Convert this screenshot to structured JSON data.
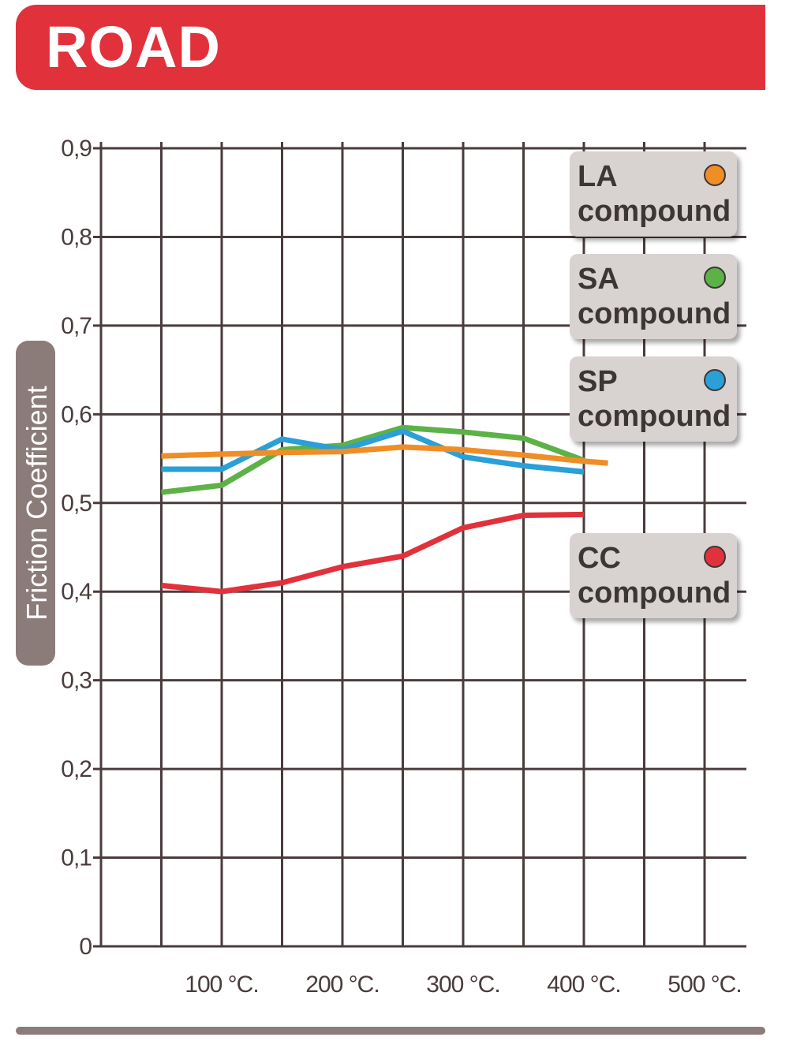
{
  "header": {
    "title": "ROAD",
    "color": "#e1323c"
  },
  "chart_data": {
    "type": "line",
    "title": "ROAD",
    "xlabel": "",
    "ylabel": "Friction Coefficient",
    "xlim": [
      0,
      540
    ],
    "ylim": [
      0,
      0.9
    ],
    "x_ticks": [
      100,
      200,
      300,
      400,
      500
    ],
    "x_tick_labels": [
      "100 °C.",
      "200 °C.",
      "300 °C.",
      "400 °C.",
      "500 °C."
    ],
    "y_ticks": [
      0,
      0.1,
      0.2,
      0.3,
      0.4,
      0.5,
      0.6,
      0.7,
      0.8,
      0.9
    ],
    "y_tick_labels": [
      "0",
      "0,1",
      "0,2",
      "0,3",
      "0,4",
      "0,5",
      "0,6",
      "0,7",
      "0,8",
      "0,9"
    ],
    "grid": true,
    "series": [
      {
        "name": "CC compound",
        "code": "CC",
        "label": "compound",
        "color": "#e1323c",
        "x": [
          50,
          100,
          150,
          200,
          250,
          300,
          350,
          400
        ],
        "y": [
          0.407,
          0.4,
          0.41,
          0.428,
          0.44,
          0.472,
          0.486,
          0.487
        ]
      },
      {
        "name": "SA compound",
        "code": "SA",
        "label": "compound",
        "color": "#5cb247",
        "x": [
          50,
          100,
          150,
          200,
          250,
          300,
          350,
          400
        ],
        "y": [
          0.512,
          0.52,
          0.56,
          0.565,
          0.585,
          0.58,
          0.573,
          0.548
        ]
      },
      {
        "name": "SP compound",
        "code": "SP",
        "label": "compound",
        "color": "#2a9fd8",
        "x": [
          50,
          100,
          150,
          200,
          250,
          300,
          350,
          400
        ],
        "y": [
          0.538,
          0.538,
          0.572,
          0.56,
          0.581,
          0.552,
          0.542,
          0.535
        ]
      },
      {
        "name": "LA compound",
        "code": "LA",
        "label": "compound",
        "color": "#ef8d26",
        "x": [
          50,
          100,
          150,
          200,
          250,
          300,
          350,
          400,
          420
        ],
        "y": [
          0.553,
          0.555,
          0.557,
          0.558,
          0.563,
          0.56,
          0.554,
          0.547,
          0.545
        ]
      }
    ],
    "legend": [
      {
        "code": "LA",
        "label": "compound",
        "color": "#ef8d26"
      },
      {
        "code": "SA",
        "label": "compound",
        "color": "#5cb247"
      },
      {
        "code": "SP",
        "label": "compound",
        "color": "#2a9fd8"
      },
      {
        "code": "CC",
        "label": "compound",
        "color": "#e1323c"
      }
    ]
  }
}
